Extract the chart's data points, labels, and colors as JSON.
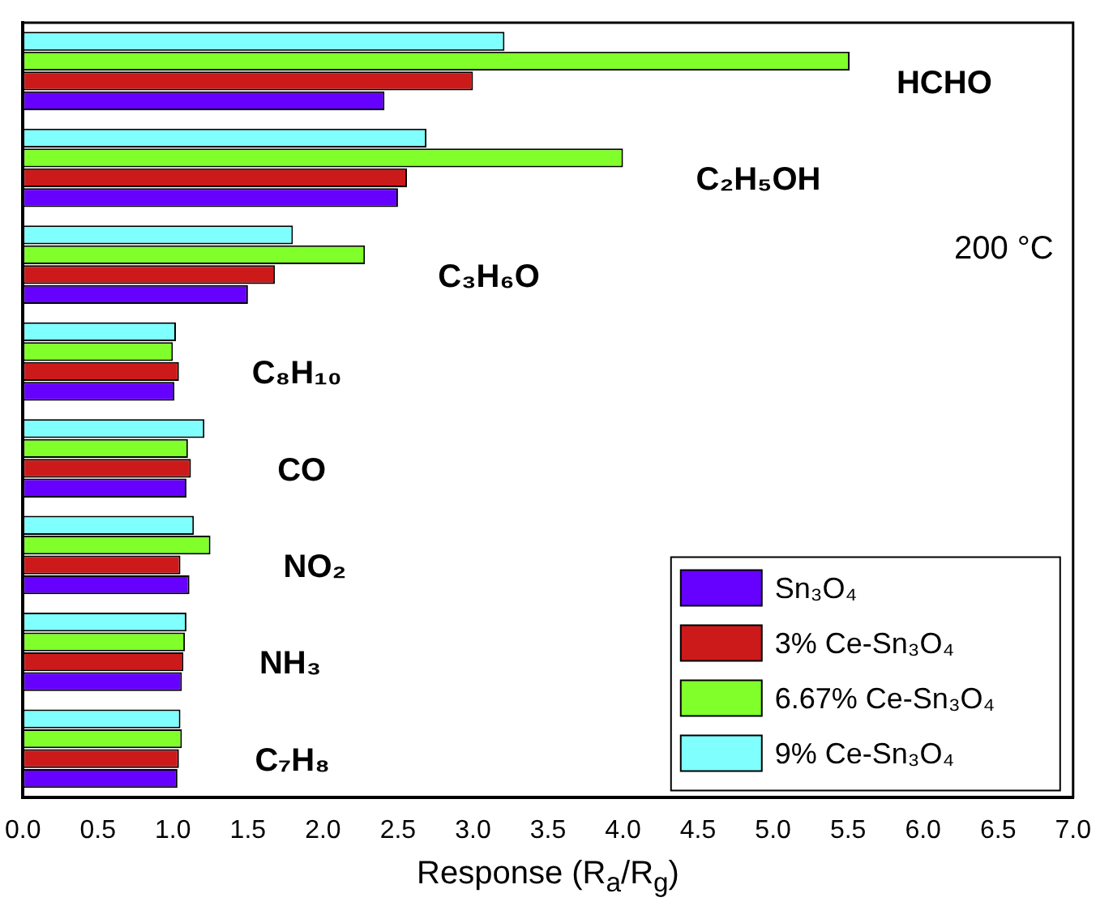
{
  "chart_data": {
    "type": "bar",
    "orientation": "horizontal",
    "xlabel": "Response (R$_{a}$/R$_{g}$)",
    "categories": [
      "HCHO",
      "C₂H₅OH",
      "C₃H₆O",
      "C₈H₁₀",
      "CO",
      "NO₂",
      "NH₃",
      "C₇H₈"
    ],
    "series": [
      {
        "name": "Sn₃O₄",
        "color": "#6600ff",
        "values": [
          2.41,
          2.5,
          1.5,
          1.01,
          1.09,
          1.11,
          1.06,
          1.03
        ]
      },
      {
        "name": "3% Ce-Sn₃O₄",
        "color": "#cc1a1a",
        "values": [
          3.0,
          2.56,
          1.68,
          1.04,
          1.12,
          1.05,
          1.07,
          1.04
        ]
      },
      {
        "name": "6.67% Ce-Sn₃O₄",
        "color": "#80ff2a",
        "values": [
          5.51,
          4.0,
          2.28,
          1.0,
          1.1,
          1.25,
          1.08,
          1.06
        ]
      },
      {
        "name": "9% Ce-Sn₃O₄",
        "color": "#80ffff",
        "values": [
          3.21,
          2.69,
          1.8,
          1.02,
          1.21,
          1.14,
          1.09,
          1.05
        ]
      }
    ],
    "xlim": [
      0,
      7
    ],
    "xticks": [
      {
        "value": 0,
        "label": "0.0"
      },
      {
        "value": 0.5,
        "label": "0.5"
      },
      {
        "value": 1,
        "label": "1.0"
      },
      {
        "value": 1.5,
        "label": "1.5"
      },
      {
        "value": 2,
        "label": "2.0"
      },
      {
        "value": 2.5,
        "label": "2.5"
      },
      {
        "value": 3,
        "label": "3.0"
      },
      {
        "value": 3.5,
        "label": "3.5"
      },
      {
        "value": 4,
        "label": "4.0"
      },
      {
        "value": 4.5,
        "label": "4.5"
      },
      {
        "value": 5,
        "label": "5.0"
      },
      {
        "value": 5.5,
        "label": "5.5"
      },
      {
        "value": 6,
        "label": "6.0"
      },
      {
        "value": 6.5,
        "label": "6.5"
      },
      {
        "value": 7,
        "label": "7.0"
      }
    ],
    "annotations": [
      "200 °C"
    ],
    "tick_labels": "x",
    "grid": false,
    "legend": "bottom right"
  }
}
